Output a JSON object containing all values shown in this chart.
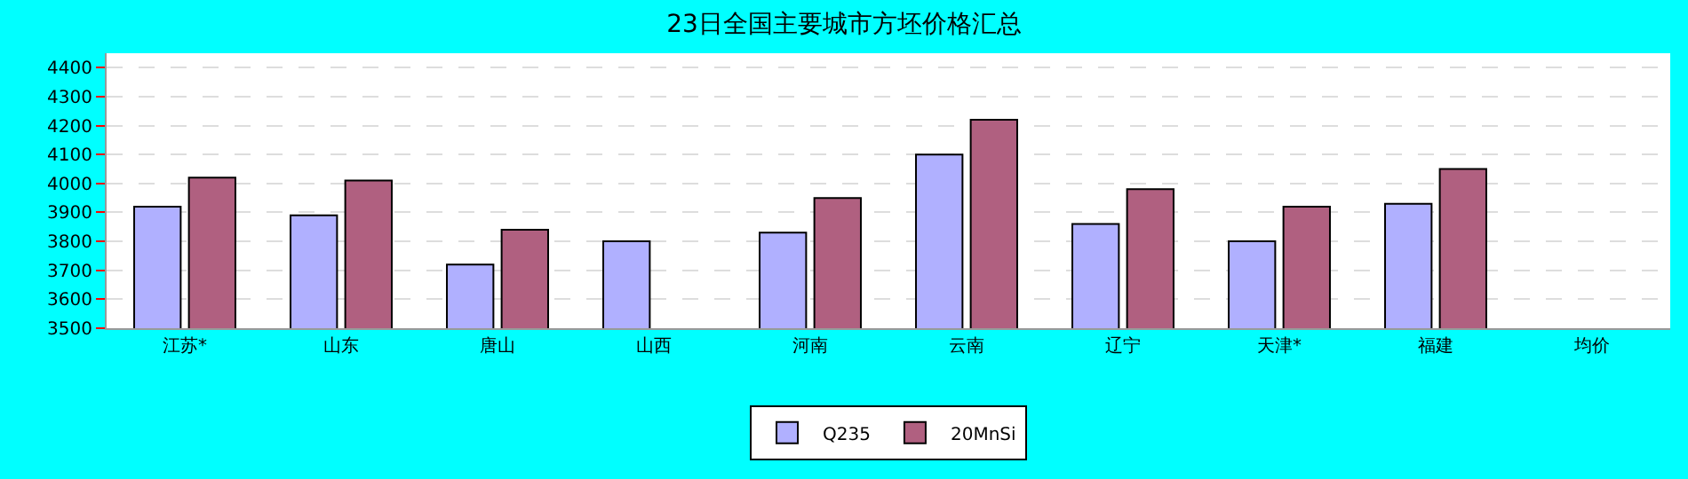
{
  "chart_data": {
    "type": "bar",
    "title": "23日全国主要城市方坯价格汇总",
    "categories": [
      "江苏*",
      "山东",
      "唐山",
      "山西",
      "河南",
      "云南",
      "辽宁",
      "天津*",
      "福建",
      "均价"
    ],
    "series": [
      {
        "name": "Q235",
        "color": "#b0b0ff",
        "values": [
          3920,
          3890,
          3720,
          3800,
          3830,
          4100,
          3860,
          3800,
          3930,
          null
        ]
      },
      {
        "name": "20MnSi",
        "color": "#b06080",
        "values": [
          4020,
          4010,
          3840,
          null,
          3950,
          4220,
          3980,
          3920,
          4050,
          null
        ]
      }
    ],
    "ylim": [
      3500,
      4450
    ],
    "yticks": [
      3500,
      3600,
      3700,
      3800,
      3900,
      4000,
      4100,
      4200,
      4300,
      4400
    ],
    "grid": "y",
    "legend": "bottom"
  }
}
